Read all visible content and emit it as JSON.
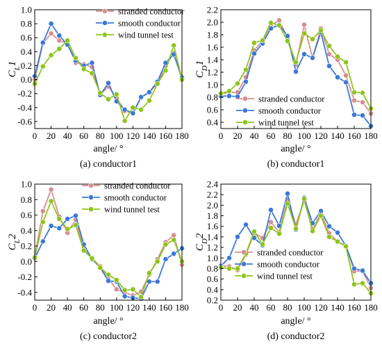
{
  "colors": {
    "stranded": "#d98e8e",
    "smooth": "#3b78d8",
    "wind": "#8dc41a"
  },
  "chart_data": [
    {
      "type": "line",
      "caption": "(a) conductor1",
      "ylabel_main": "C",
      "ylabel_sub": "L",
      "ylabel_suffix": "1",
      "xlabel": "angle/ °",
      "xlim": [
        0,
        180
      ],
      "ylim": [
        -0.7,
        1.0
      ],
      "xticks": [
        0,
        20,
        40,
        60,
        80,
        100,
        120,
        140,
        160,
        180
      ],
      "yticks": [
        -0.6,
        -0.4,
        -0.2,
        0.0,
        0.2,
        0.4,
        0.6,
        0.8,
        1.0
      ],
      "legend": "top-right",
      "x": [
        0,
        10,
        20,
        30,
        40,
        50,
        60,
        70,
        80,
        90,
        100,
        110,
        120,
        130,
        140,
        150,
        160,
        170,
        180
      ],
      "series": [
        {
          "name": "stranded conductor",
          "values": [
            0.0,
            0.52,
            0.66,
            0.56,
            0.52,
            0.24,
            0.22,
            0.18,
            -0.22,
            -0.1,
            -0.26,
            -0.45,
            -0.48,
            -0.26,
            -0.18,
            -0.06,
            0.2,
            0.38,
            0.0
          ]
        },
        {
          "name": "smooth conductor",
          "values": [
            0.05,
            0.53,
            0.8,
            0.63,
            0.5,
            0.27,
            0.2,
            0.24,
            -0.22,
            -0.05,
            -0.31,
            -0.43,
            -0.48,
            -0.25,
            -0.18,
            -0.03,
            0.24,
            0.36,
            0.03
          ]
        },
        {
          "name": "wind tunnel test",
          "values": [
            -0.06,
            0.19,
            0.35,
            0.44,
            0.56,
            0.31,
            0.15,
            0.09,
            -0.19,
            -0.28,
            -0.21,
            -0.59,
            -0.4,
            -0.43,
            -0.3,
            -0.06,
            0.13,
            0.49,
            0.0
          ]
        }
      ]
    },
    {
      "type": "line",
      "caption": "(b) conductor1",
      "ylabel_main": "C",
      "ylabel_sub": "D",
      "ylabel_suffix": "1",
      "xlabel": "angle/ °",
      "xlim": [
        0,
        180
      ],
      "ylim": [
        0.3,
        2.2
      ],
      "xticks": [
        0,
        20,
        40,
        60,
        80,
        100,
        120,
        140,
        160,
        180
      ],
      "yticks": [
        0.4,
        0.6,
        0.8,
        1.0,
        1.2,
        1.4,
        1.6,
        1.8,
        2.0,
        2.2
      ],
      "legend": "center-right",
      "x": [
        0,
        10,
        20,
        30,
        40,
        50,
        60,
        70,
        80,
        90,
        100,
        110,
        120,
        130,
        140,
        150,
        160,
        170,
        180
      ],
      "series": [
        {
          "name": "stranded conductor",
          "values": [
            0.85,
            0.88,
            0.88,
            1.12,
            1.55,
            1.7,
            1.95,
            2.03,
            1.75,
            1.32,
            1.96,
            1.43,
            1.9,
            1.49,
            1.4,
            1.15,
            0.75,
            0.72,
            0.54
          ]
        },
        {
          "name": "smooth conductor",
          "values": [
            0.82,
            0.82,
            0.81,
            1.05,
            1.5,
            1.66,
            1.9,
            1.96,
            1.78,
            1.21,
            1.49,
            1.43,
            1.84,
            1.3,
            1.12,
            1.04,
            0.52,
            0.51,
            0.34
          ]
        },
        {
          "name": "wind tunnel test",
          "values": [
            0.86,
            0.9,
            1.02,
            1.24,
            1.67,
            1.71,
            1.99,
            1.95,
            1.7,
            1.36,
            1.82,
            1.73,
            1.87,
            1.62,
            1.45,
            1.36,
            0.88,
            0.87,
            0.62
          ]
        }
      ]
    },
    {
      "type": "line",
      "caption": "(c) conductor2",
      "ylabel_main": "C",
      "ylabel_sub": "L",
      "ylabel_suffix": "2",
      "xlabel": "angle/ °",
      "xlim": [
        0,
        180
      ],
      "ylim": [
        -0.5,
        1.0
      ],
      "xticks": [
        0,
        20,
        40,
        60,
        80,
        100,
        120,
        140,
        160,
        180
      ],
      "yticks": [
        -0.4,
        -0.2,
        0.0,
        0.2,
        0.4,
        0.6,
        0.8,
        1.0
      ],
      "legend": "top-right",
      "x": [
        0,
        10,
        20,
        30,
        40,
        50,
        60,
        70,
        80,
        90,
        100,
        110,
        120,
        130,
        140,
        150,
        160,
        170,
        180
      ],
      "series": [
        {
          "name": "stranded conductor",
          "values": [
            0.06,
            0.65,
            0.93,
            0.58,
            0.37,
            0.54,
            0.17,
            0.04,
            -0.06,
            -0.22,
            -0.36,
            -0.4,
            -0.44,
            -0.39,
            -0.17,
            0.03,
            0.25,
            0.34,
            -0.04
          ]
        },
        {
          "name": "smooth conductor",
          "values": [
            0.04,
            0.26,
            0.46,
            0.43,
            0.55,
            0.59,
            0.22,
            0.03,
            -0.08,
            -0.25,
            -0.26,
            -0.45,
            -0.47,
            -0.48,
            -0.26,
            -0.26,
            0.03,
            0.1,
            0.17
          ]
        },
        {
          "name": "wind tunnel test",
          "values": [
            0.05,
            0.51,
            0.78,
            0.55,
            0.42,
            0.47,
            0.14,
            0.04,
            -0.08,
            -0.17,
            -0.24,
            -0.37,
            -0.36,
            -0.46,
            -0.15,
            0.0,
            0.22,
            0.28,
            0.0
          ]
        }
      ]
    },
    {
      "type": "line",
      "caption": "(d) conductor2",
      "ylabel_main": "C",
      "ylabel_sub": "D",
      "ylabel_suffix": "2",
      "xlabel": "angle/ °",
      "xlim": [
        0,
        180
      ],
      "ylim": [
        0.2,
        2.4
      ],
      "xticks": [
        0,
        20,
        40,
        60,
        80,
        100,
        120,
        140,
        160,
        180
      ],
      "yticks": [
        0.2,
        0.4,
        0.6,
        0.8,
        1.0,
        1.2,
        1.4,
        1.6,
        1.8,
        2.0,
        2.2,
        2.4
      ],
      "legend": "bottom-right",
      "x": [
        0,
        10,
        20,
        30,
        40,
        50,
        60,
        70,
        80,
        90,
        100,
        110,
        120,
        130,
        140,
        150,
        160,
        170,
        180
      ],
      "series": [
        {
          "name": "stranded conductor",
          "values": [
            0.85,
            0.84,
            0.77,
            1.06,
            1.47,
            1.38,
            1.68,
            1.49,
            2.1,
            1.64,
            2.08,
            1.55,
            1.85,
            1.47,
            1.31,
            1.24,
            0.75,
            0.75,
            0.43
          ]
        },
        {
          "name": "smooth conductor",
          "values": [
            0.85,
            1.0,
            1.4,
            1.63,
            1.38,
            1.24,
            1.91,
            1.61,
            2.22,
            1.54,
            2.14,
            1.66,
            1.89,
            1.6,
            1.48,
            1.23,
            0.8,
            0.76,
            0.52
          ]
        },
        {
          "name": "wind tunnel test",
          "values": [
            0.82,
            0.8,
            0.8,
            1.08,
            1.5,
            1.26,
            1.57,
            1.46,
            2.03,
            1.56,
            2.12,
            1.51,
            1.8,
            1.4,
            1.31,
            1.22,
            0.5,
            0.52,
            0.33
          ]
        }
      ]
    }
  ]
}
